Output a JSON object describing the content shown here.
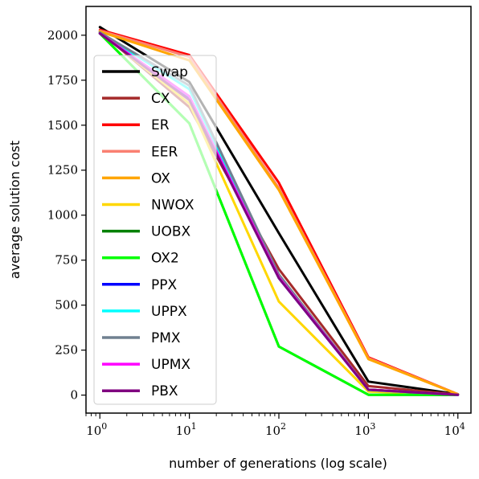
{
  "chart_data": {
    "type": "line",
    "title": "",
    "xlabel": "number of generations (log scale)",
    "ylabel": "average solution cost",
    "xscale": "log",
    "xlim": [
      0.7,
      14000
    ],
    "ylim": [
      -100,
      2160
    ],
    "x": [
      1,
      10,
      100,
      1000,
      10000
    ],
    "xticks": [
      {
        "value": 1,
        "base": "10",
        "exp": "0"
      },
      {
        "value": 10,
        "base": "10",
        "exp": "1"
      },
      {
        "value": 100,
        "base": "10",
        "exp": "2"
      },
      {
        "value": 1000,
        "base": "10",
        "exp": "3"
      },
      {
        "value": 10000,
        "base": "10",
        "exp": "4"
      }
    ],
    "yticks": [
      {
        "value": 0,
        "label": "0"
      },
      {
        "value": 250,
        "label": "250"
      },
      {
        "value": 500,
        "label": "500"
      },
      {
        "value": 750,
        "label": "750"
      },
      {
        "value": 1000,
        "label": "1000"
      },
      {
        "value": 1250,
        "label": "1250"
      },
      {
        "value": 1500,
        "label": "1500"
      },
      {
        "value": 1750,
        "label": "1750"
      },
      {
        "value": 2000,
        "label": "2000"
      }
    ],
    "grid": false,
    "legend": {
      "placement": "left",
      "alpha": 0.7
    },
    "series": [
      {
        "name": "Swap",
        "color": "#000000",
        "values": [
          2045,
          1740,
          900,
          75,
          5
        ]
      },
      {
        "name": "CX",
        "color": "#a52a2a",
        "values": [
          2020,
          1600,
          700,
          50,
          3
        ]
      },
      {
        "name": "ER",
        "color": "#ff0000",
        "values": [
          2030,
          1890,
          1180,
          210,
          5
        ]
      },
      {
        "name": "EER",
        "color": "#fa8072",
        "values": [
          2025,
          1880,
          1150,
          205,
          5
        ]
      },
      {
        "name": "OX",
        "color": "#ffa500",
        "values": [
          2020,
          1860,
          1140,
          200,
          5
        ]
      },
      {
        "name": "NWOX",
        "color": "#ffd700",
        "values": [
          2015,
          1620,
          520,
          20,
          2
        ]
      },
      {
        "name": "UOBX",
        "color": "#008000",
        "values": [
          2010,
          1510,
          270,
          2,
          1
        ]
      },
      {
        "name": "OX2",
        "color": "#00ff00",
        "values": [
          2010,
          1510,
          270,
          2,
          1
        ]
      },
      {
        "name": "PPX",
        "color": "#0000ff",
        "values": [
          2010,
          1650,
          650,
          30,
          2
        ]
      },
      {
        "name": "UPPX",
        "color": "#00ffff",
        "values": [
          2015,
          1700,
          660,
          28,
          2
        ]
      },
      {
        "name": "PMX",
        "color": "#708090",
        "values": [
          2015,
          1720,
          670,
          30,
          2
        ]
      },
      {
        "name": "UPMX",
        "color": "#ff00ff",
        "values": [
          2010,
          1660,
          655,
          30,
          2
        ]
      },
      {
        "name": "PBX",
        "color": "#800080",
        "values": [
          2010,
          1640,
          650,
          30,
          2
        ]
      }
    ]
  }
}
